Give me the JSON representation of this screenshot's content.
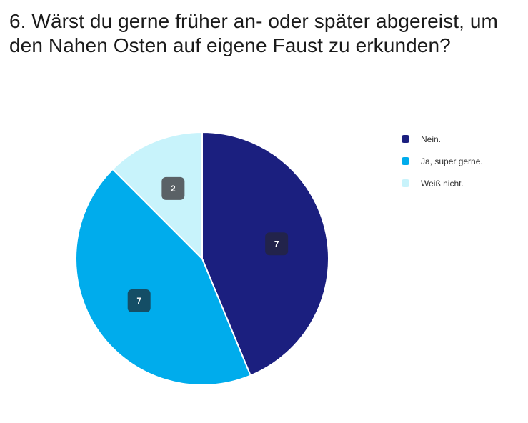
{
  "question": {
    "title": "6. Wärst du gerne früher an- oder später abgereist, um den Nahen Osten auf eigene Faust zu erkunden?"
  },
  "chart_data": {
    "type": "pie",
    "title": "6. Wärst du gerne früher an- oder später abgereist, um den Nahen Osten auf eigene Faust zu erkunden?",
    "slices": [
      {
        "label": "Nein.",
        "value": 7,
        "color": "#1b1f7f",
        "label_bg": "#22234b"
      },
      {
        "label": "Ja, super gerne.",
        "value": 7,
        "color": "#00acec",
        "label_bg": "#144e66"
      },
      {
        "label": "Weiß nicht.",
        "value": 2,
        "color": "#c8f3fb",
        "label_bg": "#5a6166"
      }
    ],
    "start_angle": "top",
    "direction": "clockwise",
    "legend_position": "right",
    "data_labels": true
  }
}
